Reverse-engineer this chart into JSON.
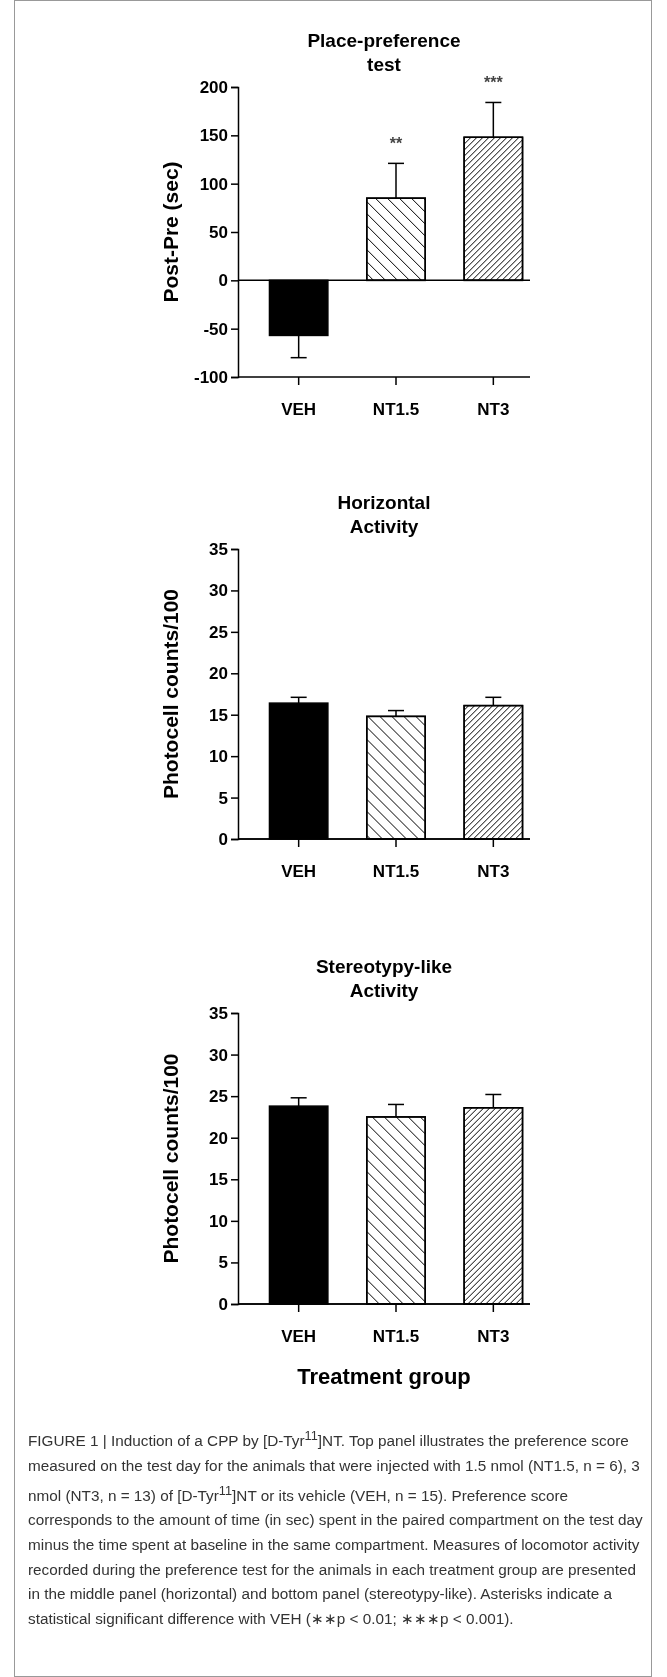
{
  "chart_data": [
    {
      "type": "bar",
      "title": "Place-preference test",
      "ylabel": "Post-Pre (sec)",
      "categories": [
        "VEH",
        "NT1.5",
        "NT3"
      ],
      "values": [
        -57,
        85,
        148
      ],
      "colors": [
        "#000000",
        "#ffffff",
        "#ffffff"
      ],
      "errors": [
        [
          -80,
          -57
        ],
        [
          85,
          121
        ],
        [
          148,
          184
        ]
      ],
      "ylim": [
        -100,
        200
      ],
      "yticks": [
        -100,
        -50,
        0,
        50,
        100,
        150,
        200
      ],
      "annotations": [
        "**",
        "***"
      ]
    },
    {
      "type": "bar",
      "title": "Horizontal Activity",
      "ylabel": "Photocell counts/100",
      "categories": [
        "VEH",
        "NT1.5",
        "NT3"
      ],
      "values": [
        16.4,
        14.8,
        16.1
      ],
      "colors": [
        "#000000",
        "#ffffff",
        "#ffffff"
      ],
      "errors": [
        [
          16.4,
          17.1
        ],
        [
          14.8,
          15.5
        ],
        [
          16.1,
          17.1
        ]
      ],
      "ylim": [
        0,
        35
      ],
      "yticks": [
        0,
        5,
        10,
        15,
        20,
        25,
        30,
        35
      ]
    },
    {
      "type": "bar",
      "title": "Stereotypy-like Activity",
      "ylabel": "Photocell counts/100",
      "xlabel": "Treatment group",
      "categories": [
        "VEH",
        "NT1.5",
        "NT3"
      ],
      "values": [
        23.8,
        22.5,
        23.6
      ],
      "colors": [
        "#000000",
        "#ffffff",
        "#ffffff"
      ],
      "errors": [
        [
          23.8,
          24.8
        ],
        [
          22.5,
          24.0
        ],
        [
          23.6,
          25.2
        ]
      ],
      "ylim": [
        0,
        35
      ],
      "yticks": [
        0,
        5,
        10,
        15,
        20,
        25,
        30,
        35
      ]
    },
    {
      "type": "other",
      "annotations": [
        "FIGURE 1 | Induction of a CPP by [D-Tyr$^{11}$]NT. Top panel illustrates the preference score measured on the test day for the animals that were injected with 1.5 nmol (NT1.5, n = 6), 3 nmol (NT3, n = 13) of [D-Tyr$^{11}$]NT or its vehicle (VEH, n = 15). Preference score corresponds to the amount of time (in sec) spent in the paired compartment on the test day minus the time spent at baseline in the same compartment. Measures of locomotor activity recorded during the preference test for the animals in each treatment group are presented in the middle panel (horizontal) and bottom panel (stereotypy-like). Asterisks indicate a statistical significant difference with VEH (∗∗p < 0.01; ∗∗∗p < 0.001)."
      ]
    }
  ]
}
